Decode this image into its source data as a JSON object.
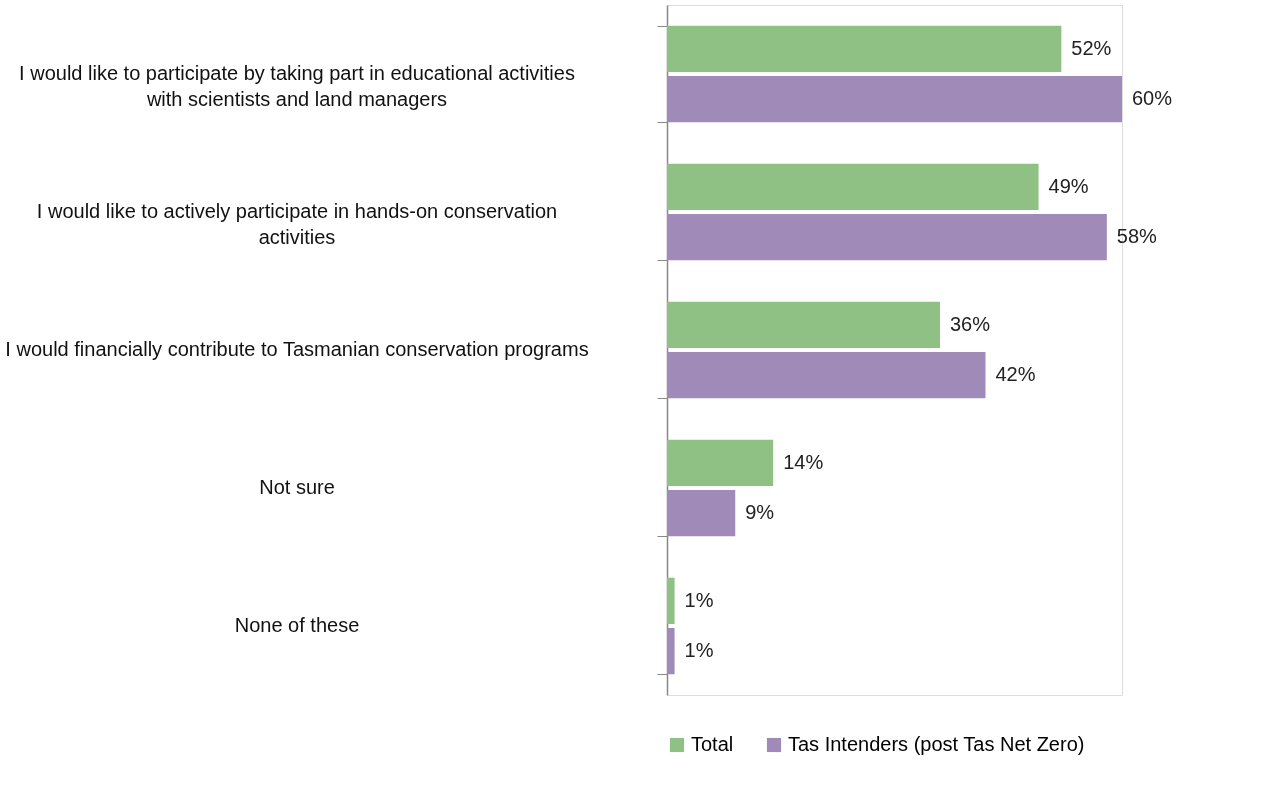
{
  "chart_data": {
    "type": "bar",
    "orientation": "horizontal",
    "categories": [
      "I would like to participate by taking part in educational activities with scientists and land managers",
      "I would like to actively participate in hands-on conservation activities",
      "I would financially contribute to Tasmanian conservation programs",
      "Not sure",
      "None of these"
    ],
    "series": [
      {
        "name": "Total",
        "color": "#8fc184",
        "values": [
          52,
          49,
          36,
          14,
          1
        ],
        "value_labels": [
          "52%",
          "49%",
          "36%",
          "14%",
          "1%"
        ]
      },
      {
        "name": "Tas Intenders (post Tas Net Zero)",
        "color": "#a08ab8",
        "values": [
          60,
          58,
          42,
          9,
          1
        ],
        "value_labels": [
          "60%",
          "58%",
          "42%",
          "9%",
          "1%"
        ]
      }
    ],
    "legend": "bottom",
    "grid": false
  }
}
